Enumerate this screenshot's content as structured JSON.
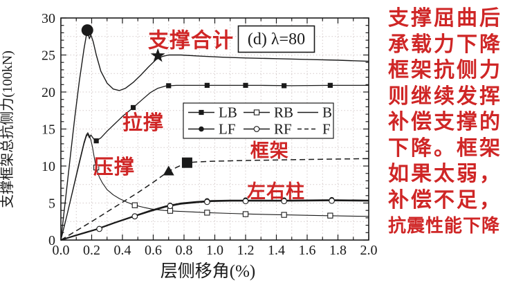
{
  "colors": {
    "curve": "#1a1a1a",
    "red": "#cf2626",
    "grid": "#d3c9c9",
    "background": "#ffffff"
  },
  "side_text": {
    "lines": [
      "支撑屈曲后",
      "承载力下降",
      "框架抗侧力",
      "则继续发挥",
      "补偿支撑的",
      "下降。框架",
      "如果太弱，",
      "补偿不足，",
      "抗震性能下降"
    ]
  },
  "chart_data": {
    "type": "line",
    "title": "(d) λ=80",
    "xlabel": "层侧移角(%)",
    "ylabel": "支撑框架总抗侧力(100kN)",
    "xlim": [
      0,
      2.0
    ],
    "ylim": [
      0,
      30
    ],
    "xtick_step": 0.2,
    "xminor_step": 0.1,
    "ytick_step": 5,
    "yminor_step": 1,
    "grid": true,
    "xgrid_step": 0.1,
    "ygrid_step": 2.5,
    "legend_position": "inside-middle-right",
    "series": [
      {
        "name": "B",
        "line": "solid",
        "width": 1.4,
        "marker": "none",
        "points": [
          [
            0,
            0
          ],
          [
            0.03,
            5.5
          ],
          [
            0.06,
            11
          ],
          [
            0.09,
            16.5
          ],
          [
            0.12,
            21.5
          ],
          [
            0.15,
            25.8
          ],
          [
            0.165,
            27.6
          ],
          [
            0.175,
            28.0
          ],
          [
            0.185,
            27.2
          ],
          [
            0.195,
            27.7
          ],
          [
            0.21,
            26.8
          ],
          [
            0.23,
            25.0
          ],
          [
            0.26,
            22.8
          ],
          [
            0.3,
            21.2
          ],
          [
            0.34,
            20.4
          ],
          [
            0.38,
            20.2
          ],
          [
            0.42,
            20.5
          ],
          [
            0.47,
            21.3
          ],
          [
            0.52,
            22.3
          ],
          [
            0.57,
            23.4
          ],
          [
            0.62,
            24.4
          ],
          [
            0.66,
            24.8
          ],
          [
            0.7,
            25.0
          ],
          [
            0.78,
            25.0
          ],
          [
            0.9,
            24.85
          ],
          [
            1.05,
            24.7
          ],
          [
            1.2,
            24.6
          ],
          [
            1.4,
            24.5
          ],
          [
            1.6,
            24.4
          ],
          [
            1.8,
            24.3
          ],
          [
            2.0,
            24.15
          ]
        ],
        "marker_points": []
      },
      {
        "name": "LB",
        "line": "solid",
        "width": 1.3,
        "marker": "square-filled",
        "points": [
          [
            0,
            0
          ],
          [
            0.04,
            3.4
          ],
          [
            0.08,
            6.9
          ],
          [
            0.12,
            10.4
          ],
          [
            0.15,
            13.0
          ],
          [
            0.165,
            14.0
          ],
          [
            0.175,
            14.3
          ],
          [
            0.185,
            13.8
          ],
          [
            0.195,
            14.2
          ],
          [
            0.205,
            13.9
          ],
          [
            0.22,
            13.5
          ],
          [
            0.23,
            13.4
          ],
          [
            0.26,
            13.8
          ],
          [
            0.3,
            14.7
          ],
          [
            0.35,
            15.7
          ],
          [
            0.4,
            16.7
          ],
          [
            0.47,
            17.9
          ],
          [
            0.53,
            19.0
          ],
          [
            0.58,
            19.9
          ],
          [
            0.63,
            20.5
          ],
          [
            0.68,
            20.8
          ],
          [
            0.75,
            20.9
          ],
          [
            0.9,
            20.9
          ],
          [
            1.1,
            20.9
          ],
          [
            1.3,
            20.9
          ],
          [
            1.5,
            20.85
          ],
          [
            1.75,
            20.9
          ],
          [
            2.0,
            20.9
          ]
        ],
        "marker_points": [
          [
            0.23,
            13.4
          ],
          [
            0.47,
            17.9
          ],
          [
            0.7,
            20.85
          ],
          [
            0.95,
            20.9
          ],
          [
            1.2,
            20.9
          ],
          [
            1.45,
            20.85
          ],
          [
            1.75,
            20.9
          ]
        ]
      },
      {
        "name": "RB",
        "line": "solid",
        "width": 1.1,
        "marker": "square-open",
        "points": [
          [
            0,
            0
          ],
          [
            0.04,
            3.4
          ],
          [
            0.08,
            7.0
          ],
          [
            0.12,
            10.6
          ],
          [
            0.15,
            13.2
          ],
          [
            0.165,
            14.2
          ],
          [
            0.175,
            14.5
          ],
          [
            0.185,
            14.1
          ],
          [
            0.195,
            13.5
          ],
          [
            0.205,
            12.6
          ],
          [
            0.215,
            11.4
          ],
          [
            0.225,
            10.2
          ],
          [
            0.235,
            9.4
          ],
          [
            0.25,
            8.5
          ],
          [
            0.27,
            7.7
          ],
          [
            0.3,
            6.8
          ],
          [
            0.34,
            6.1
          ],
          [
            0.38,
            5.6
          ],
          [
            0.43,
            5.1
          ],
          [
            0.48,
            4.7
          ],
          [
            0.54,
            4.4
          ],
          [
            0.6,
            4.15
          ],
          [
            0.67,
            4.0
          ],
          [
            0.75,
            3.9
          ],
          [
            0.85,
            3.8
          ],
          [
            0.95,
            3.7
          ],
          [
            1.1,
            3.6
          ],
          [
            1.25,
            3.5
          ],
          [
            1.45,
            3.4
          ],
          [
            1.7,
            3.3
          ],
          [
            2.0,
            3.2
          ]
        ],
        "marker_points": [
          [
            0.23,
            9.8
          ],
          [
            0.48,
            4.7
          ],
          [
            0.71,
            3.95
          ],
          [
            0.95,
            3.7
          ],
          [
            1.2,
            3.5
          ],
          [
            1.45,
            3.4
          ],
          [
            1.75,
            3.3
          ]
        ]
      },
      {
        "name": "LF",
        "line": "solid",
        "width": 2.2,
        "marker": "circle-filled",
        "points": [
          [
            0,
            0
          ],
          [
            0.1,
            0.65
          ],
          [
            0.23,
            1.45
          ],
          [
            0.35,
            2.35
          ],
          [
            0.48,
            3.25
          ],
          [
            0.58,
            3.95
          ],
          [
            0.68,
            4.55
          ],
          [
            0.78,
            4.95
          ],
          [
            0.88,
            5.15
          ],
          [
            0.98,
            5.3
          ],
          [
            1.1,
            5.35
          ],
          [
            1.3,
            5.35
          ],
          [
            1.5,
            5.35
          ],
          [
            1.75,
            5.4
          ],
          [
            2.0,
            5.35
          ]
        ],
        "marker_points": [
          [
            0.25,
            1.55
          ],
          [
            0.48,
            3.25
          ],
          [
            0.71,
            4.7
          ],
          [
            0.95,
            5.3
          ],
          [
            1.2,
            5.4
          ],
          [
            1.45,
            5.4
          ],
          [
            1.76,
            5.45
          ]
        ]
      },
      {
        "name": "RF",
        "line": "solid",
        "width": 1.2,
        "marker": "circle-open",
        "points": [
          [
            0,
            0
          ],
          [
            0.1,
            0.6
          ],
          [
            0.23,
            1.4
          ],
          [
            0.35,
            2.3
          ],
          [
            0.48,
            3.2
          ],
          [
            0.58,
            3.85
          ],
          [
            0.68,
            4.45
          ],
          [
            0.78,
            4.85
          ],
          [
            0.88,
            5.05
          ],
          [
            0.98,
            5.2
          ],
          [
            1.1,
            5.25
          ],
          [
            1.3,
            5.25
          ],
          [
            1.5,
            5.25
          ],
          [
            1.75,
            5.3
          ],
          [
            2.0,
            5.25
          ]
        ],
        "marker_points": [
          [
            0.25,
            1.5
          ],
          [
            0.48,
            3.2
          ],
          [
            0.71,
            4.6
          ],
          [
            0.95,
            5.15
          ],
          [
            1.2,
            5.25
          ],
          [
            1.45,
            5.25
          ],
          [
            1.76,
            5.3
          ]
        ]
      },
      {
        "name": "F",
        "line": "dashed",
        "width": 1.5,
        "marker": "none",
        "points": [
          [
            0,
            0
          ],
          [
            0.1,
            1.25
          ],
          [
            0.2,
            2.5
          ],
          [
            0.3,
            3.8
          ],
          [
            0.4,
            5.1
          ],
          [
            0.5,
            6.4
          ],
          [
            0.6,
            7.8
          ],
          [
            0.7,
            9.3
          ],
          [
            0.78,
            10.1
          ],
          [
            0.82,
            10.45
          ],
          [
            0.88,
            10.55
          ],
          [
            1.0,
            10.65
          ],
          [
            1.2,
            10.75
          ],
          [
            1.5,
            10.85
          ],
          [
            2.0,
            11.0
          ]
        ],
        "marker_points": []
      }
    ],
    "legend": {
      "rows": [
        [
          {
            "label": "LB",
            "marker": "square-filled",
            "line": "solid"
          },
          {
            "label": "RB",
            "marker": "square-open",
            "line": "solid"
          },
          {
            "label": "B",
            "marker": "none",
            "line": "solid"
          }
        ],
        [
          {
            "label": "LF",
            "marker": "circle-filled",
            "line": "solid"
          },
          {
            "label": "RF",
            "marker": "circle-open",
            "line": "solid"
          },
          {
            "label": "F",
            "marker": "none",
            "line": "dashed"
          }
        ]
      ]
    },
    "annotation_markers": [
      {
        "shape": "circle",
        "x": 0.172,
        "y": 28.35
      },
      {
        "shape": "star",
        "x": 0.63,
        "y": 24.9
      },
      {
        "shape": "triangle",
        "x": 0.7,
        "y": 9.3
      },
      {
        "shape": "square",
        "x": 0.82,
        "y": 10.45
      }
    ],
    "annotation_labels": [
      {
        "text": "支撑合计",
        "x": 0.845,
        "y": 27.0,
        "size": 30
      },
      {
        "text": "拉撑",
        "x": 0.535,
        "y": 15.9,
        "size": 29
      },
      {
        "text": "压撑",
        "x": 0.346,
        "y": 9.9,
        "size": 29
      },
      {
        "text": "框架",
        "x": 1.357,
        "y": 12.1,
        "size": 27
      },
      {
        "text": "左右柱",
        "x": 1.398,
        "y": 6.6,
        "size": 27
      }
    ]
  }
}
